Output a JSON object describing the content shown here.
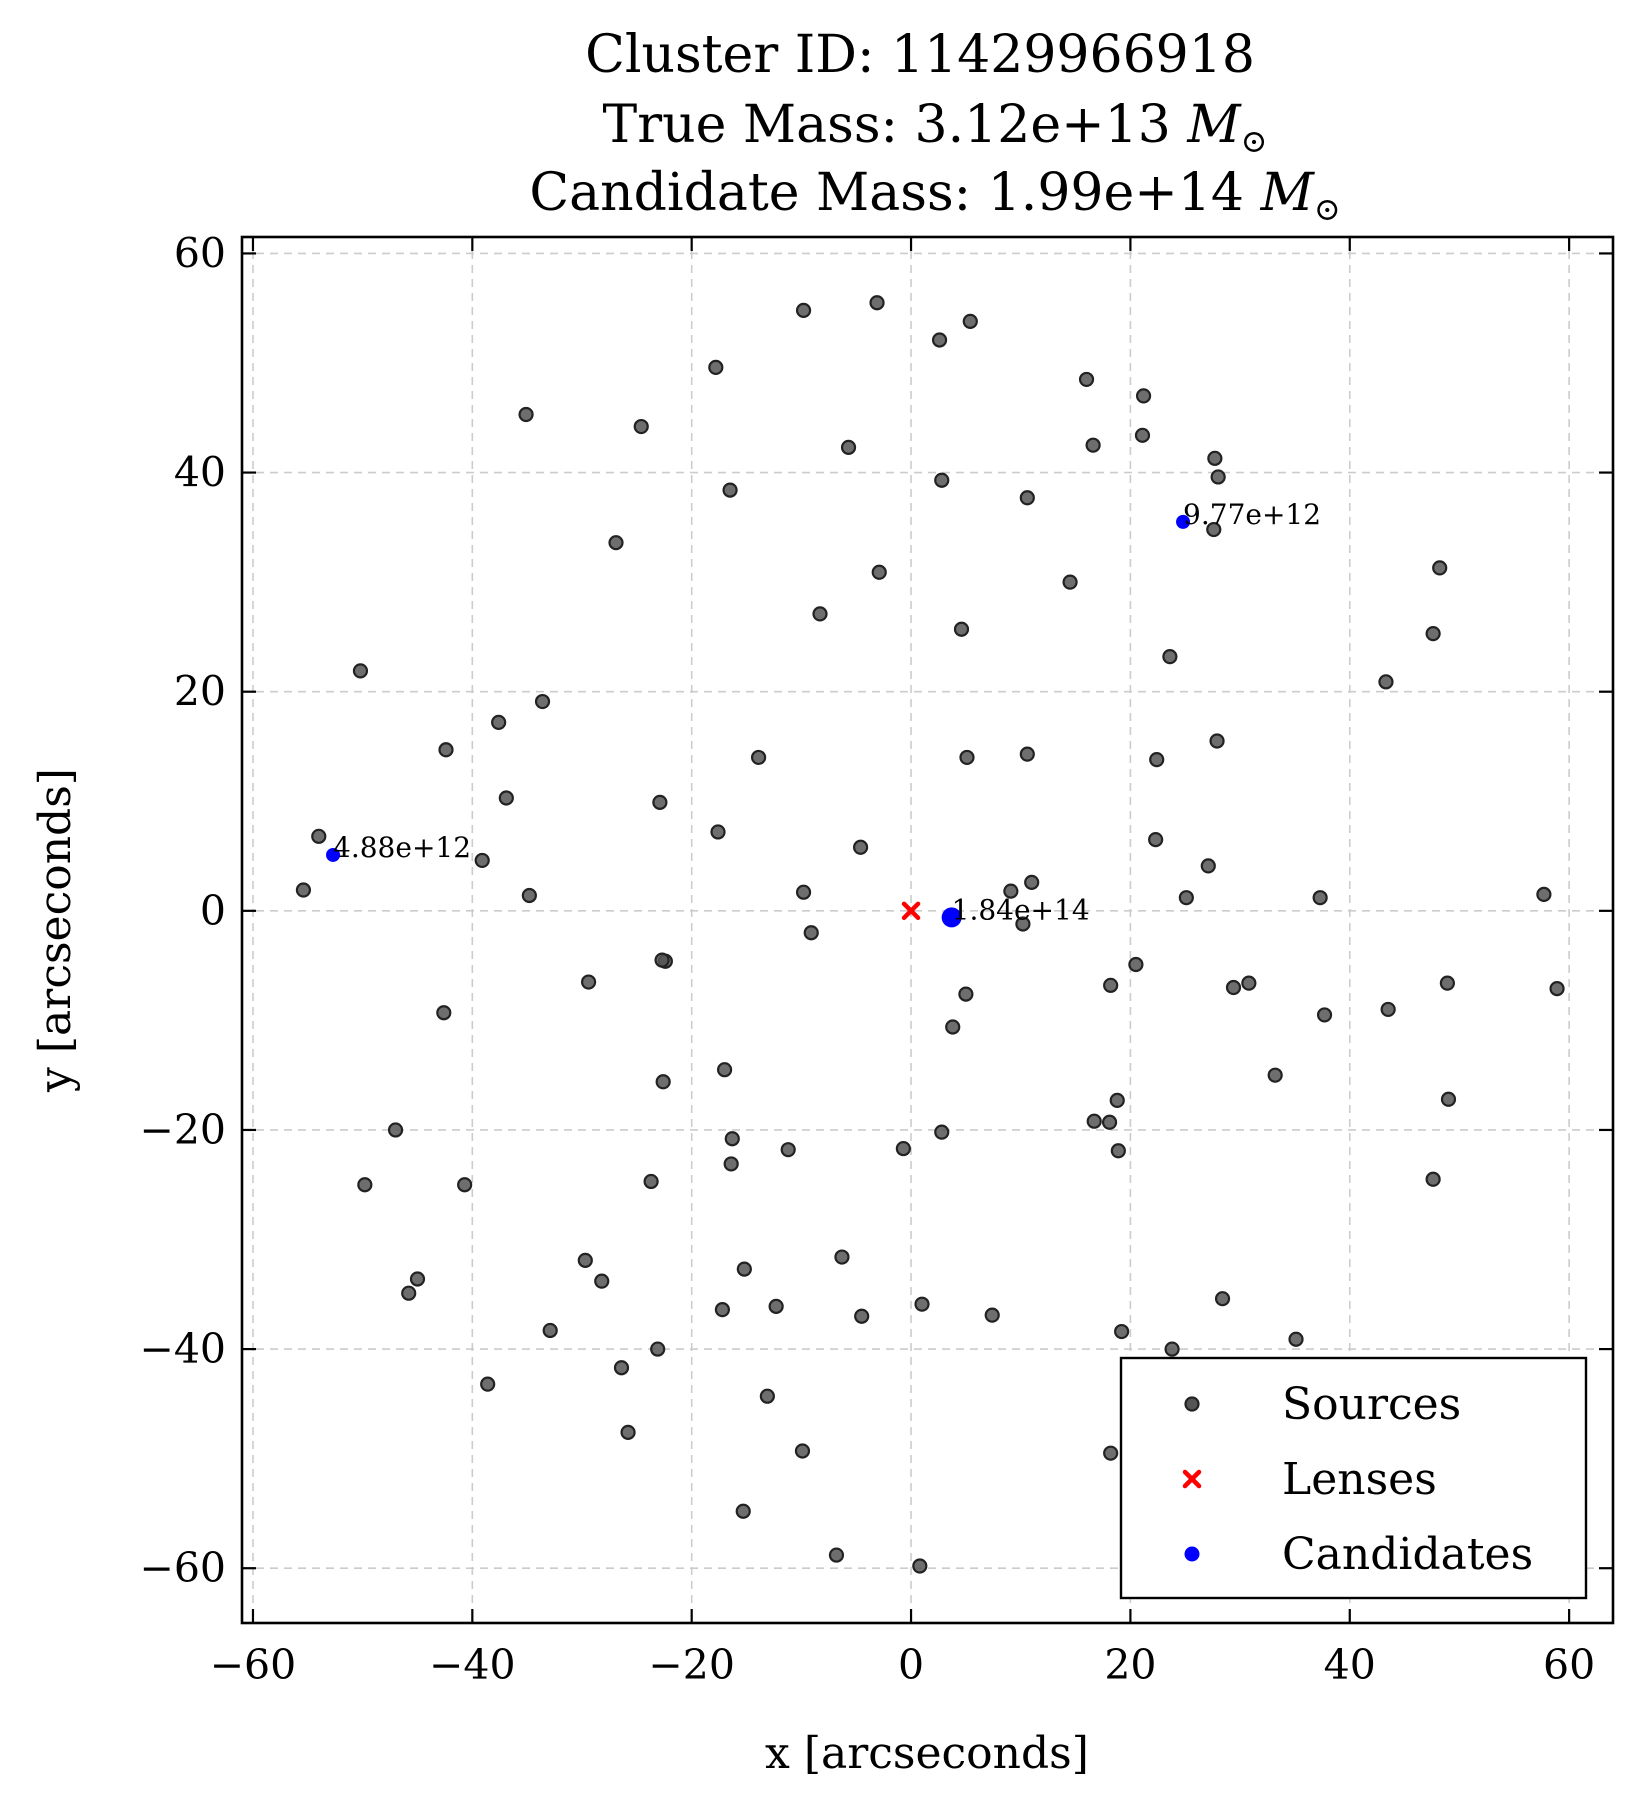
{
  "chart_data": {
    "type": "scatter",
    "title": {
      "line1": "Cluster ID: 11429966918",
      "line2_text": "True Mass: 3.12e+13 ",
      "line3_text": "Candidate Mass: 1.99e+14 ",
      "mass_unit_symbol": "M",
      "mass_unit_subscript": "⊙"
    },
    "xlabel": "x [arcseconds]",
    "ylabel": "y [arcseconds]",
    "xlim": [
      -61,
      64
    ],
    "ylim": [
      -65,
      61.5
    ],
    "xticks": [
      -60,
      -40,
      -20,
      0,
      20,
      40,
      60
    ],
    "yticks": [
      -60,
      -40,
      -20,
      0,
      20,
      40,
      60
    ],
    "xtick_labels": [
      "−60",
      "−40",
      "−20",
      "0",
      "20",
      "40",
      "60"
    ],
    "ytick_labels": [
      "−60",
      "−40",
      "−20",
      "0",
      "20",
      "40",
      "60"
    ],
    "grid": true,
    "legend_position": "lower right",
    "series": [
      {
        "name": "Sources",
        "marker": "circle",
        "color": "#555555",
        "edge_color": "#222222",
        "points": [
          [
            -9.8,
            54.8
          ],
          [
            -3.1,
            55.5
          ],
          [
            5.4,
            53.8
          ],
          [
            2.6,
            52.1
          ],
          [
            -17.8,
            49.6
          ],
          [
            16.0,
            48.5
          ],
          [
            21.2,
            47.0
          ],
          [
            -35.1,
            45.3
          ],
          [
            -24.6,
            44.2
          ],
          [
            -5.7,
            42.3
          ],
          [
            16.6,
            42.5
          ],
          [
            21.1,
            43.4
          ],
          [
            27.7,
            41.3
          ],
          [
            28.0,
            39.6
          ],
          [
            2.8,
            39.3
          ],
          [
            -16.5,
            38.4
          ],
          [
            10.6,
            37.7
          ],
          [
            27.6,
            34.8
          ],
          [
            -26.9,
            33.6
          ],
          [
            -2.9,
            30.9
          ],
          [
            14.5,
            30.0
          ],
          [
            48.2,
            31.3
          ],
          [
            -8.3,
            27.1
          ],
          [
            4.6,
            25.7
          ],
          [
            47.6,
            25.3
          ],
          [
            23.6,
            23.2
          ],
          [
            -50.2,
            21.9
          ],
          [
            43.3,
            20.9
          ],
          [
            -33.6,
            19.1
          ],
          [
            -37.6,
            17.2
          ],
          [
            27.9,
            15.5
          ],
          [
            -42.4,
            14.7
          ],
          [
            -13.9,
            14.0
          ],
          [
            5.1,
            14.0
          ],
          [
            10.6,
            14.3
          ],
          [
            22.4,
            13.8
          ],
          [
            -36.9,
            10.3
          ],
          [
            -22.9,
            9.9
          ],
          [
            -17.6,
            7.2
          ],
          [
            -4.6,
            5.8
          ],
          [
            22.3,
            6.5
          ],
          [
            -54.0,
            6.8
          ],
          [
            -39.1,
            4.6
          ],
          [
            27.1,
            4.1
          ],
          [
            -55.4,
            1.9
          ],
          [
            -34.8,
            1.4
          ],
          [
            -9.8,
            1.7
          ],
          [
            9.1,
            1.8
          ],
          [
            11.0,
            2.6
          ],
          [
            25.1,
            1.2
          ],
          [
            37.3,
            1.2
          ],
          [
            57.7,
            1.5
          ],
          [
            -9.1,
            -2.0
          ],
          [
            10.2,
            -1.2
          ],
          [
            20.5,
            -4.9
          ],
          [
            -22.4,
            -4.6
          ],
          [
            -22.7,
            -4.5
          ],
          [
            -29.4,
            -6.5
          ],
          [
            18.2,
            -6.8
          ],
          [
            29.4,
            -7.0
          ],
          [
            30.8,
            -6.6
          ],
          [
            48.9,
            -6.6
          ],
          [
            58.9,
            -7.1
          ],
          [
            5.0,
            -7.6
          ],
          [
            -42.6,
            -9.3
          ],
          [
            37.7,
            -9.5
          ],
          [
            43.5,
            -9.0
          ],
          [
            3.8,
            -10.6
          ],
          [
            -17.0,
            -14.5
          ],
          [
            33.2,
            -15.0
          ],
          [
            -22.6,
            -15.6
          ],
          [
            18.8,
            -17.3
          ],
          [
            49.0,
            -17.2
          ],
          [
            16.7,
            -19.2
          ],
          [
            18.1,
            -19.3
          ],
          [
            -47.0,
            -20.0
          ],
          [
            2.8,
            -20.2
          ],
          [
            -16.3,
            -20.8
          ],
          [
            -11.2,
            -21.8
          ],
          [
            -0.7,
            -21.7
          ],
          [
            18.9,
            -21.9
          ],
          [
            -16.4,
            -23.1
          ],
          [
            -49.8,
            -25.0
          ],
          [
            -40.7,
            -25.0
          ],
          [
            -23.7,
            -24.7
          ],
          [
            47.6,
            -24.5
          ],
          [
            -29.7,
            -31.9
          ],
          [
            -6.3,
            -31.6
          ],
          [
            -28.2,
            -33.8
          ],
          [
            -15.2,
            -32.7
          ],
          [
            -45.0,
            -33.6
          ],
          [
            -45.8,
            -34.9
          ],
          [
            28.4,
            -35.4
          ],
          [
            1.0,
            -35.9
          ],
          [
            -17.2,
            -36.4
          ],
          [
            -12.3,
            -36.1
          ],
          [
            -4.5,
            -37.0
          ],
          [
            7.4,
            -36.9
          ],
          [
            -32.9,
            -38.3
          ],
          [
            19.2,
            -38.4
          ],
          [
            35.1,
            -39.1
          ],
          [
            -23.1,
            -40.0
          ],
          [
            23.8,
            -40.0
          ],
          [
            -26.4,
            -41.7
          ],
          [
            -38.6,
            -43.2
          ],
          [
            -13.1,
            -44.3
          ],
          [
            -25.8,
            -47.6
          ],
          [
            -9.9,
            -49.3
          ],
          [
            18.2,
            -49.5
          ],
          [
            -15.3,
            -54.8
          ],
          [
            -6.8,
            -58.8
          ],
          [
            0.8,
            -59.8
          ]
        ]
      },
      {
        "name": "Lenses",
        "marker": "x",
        "color": "#ff0000",
        "points": [
          [
            0.0,
            0.0
          ]
        ]
      },
      {
        "name": "Candidates",
        "marker": "circle",
        "color": "#0000ff",
        "points": [
          {
            "x": 3.7,
            "y": -0.6,
            "label": "1.84e+14",
            "major": true
          },
          {
            "x": 24.8,
            "y": 35.5,
            "label": "9.77e+12",
            "major": false
          },
          {
            "x": -52.7,
            "y": 5.1,
            "label": "4.88e+12",
            "major": false
          }
        ]
      }
    ],
    "legend": [
      {
        "label": "Sources",
        "marker": "circle",
        "color": "#555555"
      },
      {
        "label": "Lenses",
        "marker": "x",
        "color": "#ff0000"
      },
      {
        "label": "Candidates",
        "marker": "circle",
        "color": "#0000ff"
      }
    ]
  }
}
